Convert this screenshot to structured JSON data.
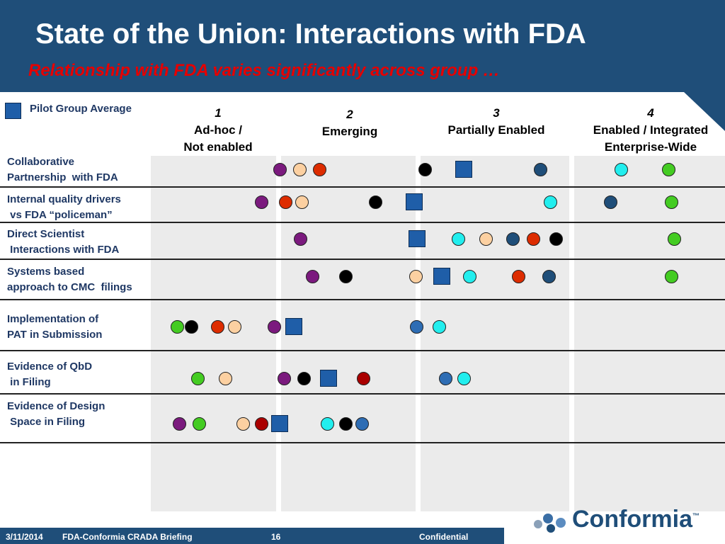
{
  "title": "State of the Union: Interactions with FDA",
  "subtitle": "Relationship with FDA varies significantly across group …",
  "legend": {
    "label": "Pilot Group Average",
    "color": "#1f5ea8"
  },
  "columns": [
    {
      "num": "1",
      "line1": "Ad-hoc /",
      "line2": "Not enabled"
    },
    {
      "num": "2",
      "line1": "Emerging",
      "line2": ""
    },
    {
      "num": "3",
      "line1": "Partially Enabled",
      "line2": ""
    },
    {
      "num": "4",
      "line1": "Enabled / Integrated",
      "line2": "Enterprise-Wide"
    }
  ],
  "colors": {
    "purple": "#7b1a7e",
    "peach": "#fcd0a1",
    "red": "#dd2c00",
    "darkred": "#aa0000",
    "black": "#000000",
    "navy": "#1f4e79",
    "blue": "#2e6db4",
    "cyan": "#22eeee",
    "green": "#44cc22",
    "square": "#1f5ea8"
  },
  "rows": [
    {
      "label": "Collaborative\nPartnership  with FDA"
    },
    {
      "label": "Internal quality drivers\n vs FDA “policeman”"
    },
    {
      "label": "Direct Scientist\n Interactions with FDA"
    },
    {
      "label": "Systems based\napproach to CMC  filings"
    },
    {
      "label": "Implementation of\nPAT in Submission"
    },
    {
      "label": "Evidence of QbD\n in Filing"
    },
    {
      "label": "Evidence of Design\n Space in Filing"
    }
  ],
  "footer": {
    "date": "3/11/2014",
    "briefing": "FDA-Conformia CRADA Briefing",
    "page": "16",
    "confidential": "Confidential"
  },
  "logo": {
    "text": "Conformia",
    "tm": "™"
  }
}
